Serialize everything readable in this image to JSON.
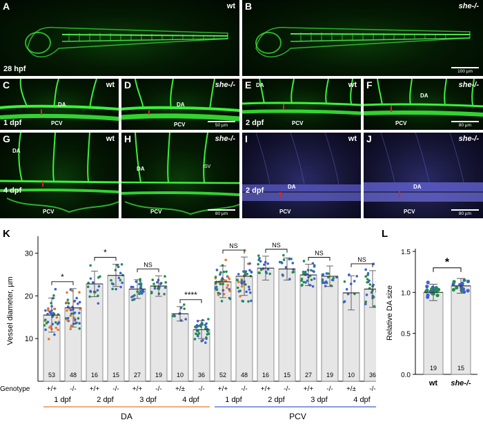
{
  "panels": {
    "A": {
      "letter": "A",
      "genotype": "wt",
      "stage": "28 hpf"
    },
    "B": {
      "letter": "B",
      "genotype": "she-/-",
      "scale": "100 µm"
    },
    "C": {
      "letter": "C",
      "genotype": "wt",
      "stage": "1 dpf",
      "da": "DA",
      "pcv": "PCV"
    },
    "D": {
      "letter": "D",
      "genotype": "she-/-",
      "da": "DA",
      "pcv": "PCV",
      "scale": "50 µm"
    },
    "E": {
      "letter": "E",
      "genotype": "wt",
      "stage": "2 dpf",
      "da": "DA",
      "pcv": "PCV"
    },
    "F": {
      "letter": "F",
      "genotype": "she-/-",
      "da": "DA",
      "pcv": "PCV",
      "scale": "80 µm"
    },
    "G": {
      "letter": "G",
      "genotype": "wt",
      "stage": "4 dpf",
      "da": "DA",
      "pcv": "PCV"
    },
    "H": {
      "letter": "H",
      "genotype": "she-/-",
      "da": "DA",
      "pcv": "PCV",
      "isv": "ISV",
      "scale": "80 µm"
    },
    "I": {
      "letter": "I",
      "genotype": "wt",
      "stage": "2 dpf",
      "da": "DA",
      "pcv": "PCV"
    },
    "J": {
      "letter": "J",
      "genotype": "she-/-",
      "da": "DA",
      "pcv": "PCV",
      "scale": "80 µm"
    }
  },
  "colors": {
    "green": "#3cf23a",
    "orange": "#e8772e",
    "blue": "#3d5fd6",
    "purple": "#8e44ad",
    "teal": "#1f8f4e",
    "bar": "#e6e6e6"
  },
  "chart_data": [
    {
      "panel": "K",
      "type": "bar",
      "ylabel": "Vessel diameter, µm",
      "ylim": [
        0,
        33
      ],
      "yticks": [
        10,
        20,
        30
      ],
      "row_label": "Genotype",
      "groups": [
        {
          "name": "DA",
          "stages": [
            "1 dpf",
            "2 dpf",
            "3 dpf",
            "4 dpf"
          ]
        },
        {
          "name": "PCV",
          "stages": [
            "1 dpf",
            "2 dpf",
            "3 dpf",
            "4 dpf"
          ]
        }
      ],
      "categories": [
        "+/+",
        "-/-",
        "+/+",
        "-/-",
        "+/+",
        "-/-",
        "+/±",
        "-/-",
        "+/+",
        "-/-",
        "+/+",
        "-/-",
        "+/+",
        "-/-",
        "+/±",
        "-/-"
      ],
      "values": [
        15.5,
        17.2,
        22.8,
        24.8,
        21.6,
        22.3,
        15.8,
        12.1,
        23.3,
        24.6,
        26.5,
        26.3,
        24.9,
        24.6,
        20.7,
        21.6
      ],
      "errors": [
        4.0,
        4.5,
        3.0,
        2.6,
        2.2,
        2.4,
        1.7,
        2.1,
        3.7,
        4.5,
        2.8,
        2.6,
        2.5,
        2.4,
        4.0,
        4.3
      ],
      "n": [
        "53",
        "48",
        "16",
        "15",
        "27",
        "19",
        "10",
        "36",
        "52",
        "48",
        "16",
        "15",
        "27",
        "19",
        "10",
        "36"
      ],
      "significance": [
        "*",
        "*",
        "NS",
        "****",
        "NS",
        "NS",
        "NS",
        "NS"
      ]
    },
    {
      "panel": "L",
      "type": "bar",
      "ylabel": "Relative DA size",
      "ylim": [
        0,
        1.5
      ],
      "yticks": [
        "0.0",
        "0.5",
        "1.0",
        "1.5"
      ],
      "categories": [
        "wt",
        "she-/-"
      ],
      "values": [
        1.0,
        1.08
      ],
      "errors": [
        0.1,
        0.09
      ],
      "n": [
        "19",
        "15"
      ],
      "significance": "*"
    }
  ]
}
